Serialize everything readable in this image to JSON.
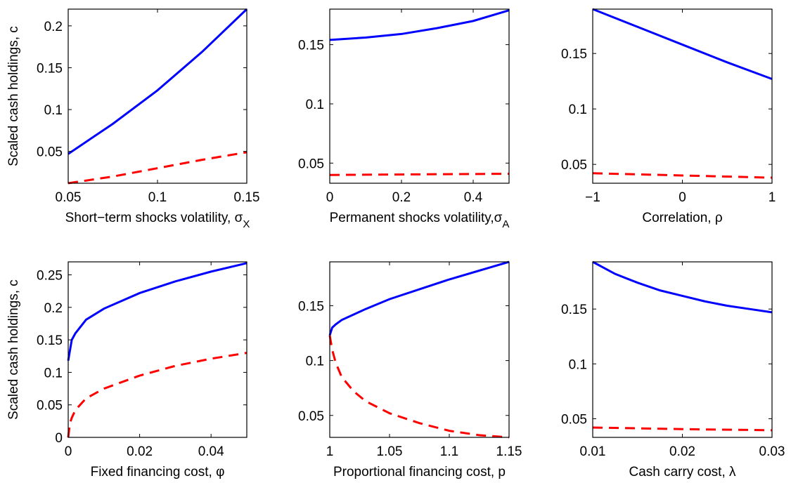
{
  "colors": {
    "solid": "#0000ff",
    "dashed": "#ff0000",
    "axis": "#000000"
  },
  "chart_data": [
    {
      "type": "line",
      "xlabel": "Short−term shocks volatility, ",
      "xlabel_symbol": "σ",
      "xlabel_sub": "X",
      "ylabel": "Scaled cash holdings, c",
      "xlim": [
        0.05,
        0.15
      ],
      "ylim": [
        0.012,
        0.22
      ],
      "xticks": [
        0.05,
        0.1,
        0.15
      ],
      "xtick_labels": [
        "0.05",
        "0.1",
        "0.15"
      ],
      "yticks": [
        0.05,
        0.1,
        0.15,
        0.2
      ],
      "ytick_labels": [
        "0.05",
        "0.1",
        "0.15",
        "0.2"
      ],
      "series": [
        {
          "style": "solid",
          "x": [
            0.05,
            0.075,
            0.1,
            0.125,
            0.15
          ],
          "y": [
            0.047,
            0.083,
            0.123,
            0.169,
            0.22
          ]
        },
        {
          "style": "dashed",
          "x": [
            0.05,
            0.075,
            0.1,
            0.125,
            0.15
          ],
          "y": [
            0.012,
            0.02,
            0.03,
            0.04,
            0.049
          ]
        }
      ]
    },
    {
      "type": "line",
      "xlabel": "Permanent shocks volatility,",
      "xlabel_symbol": "σ",
      "xlabel_sub": "A",
      "ylabel": "",
      "xlim": [
        0,
        0.5
      ],
      "ylim": [
        0.033,
        0.18
      ],
      "xticks": [
        0,
        0.2,
        0.4
      ],
      "xtick_labels": [
        "0",
        "0.2",
        "0.4"
      ],
      "yticks": [
        0.05,
        0.1,
        0.15
      ],
      "ytick_labels": [
        "0.05",
        "0.1",
        "0.15"
      ],
      "series": [
        {
          "style": "solid",
          "x": [
            0,
            0.1,
            0.2,
            0.3,
            0.4,
            0.5
          ],
          "y": [
            0.154,
            0.156,
            0.159,
            0.164,
            0.17,
            0.179
          ]
        },
        {
          "style": "dashed",
          "x": [
            0,
            0.25,
            0.5
          ],
          "y": [
            0.04,
            0.0405,
            0.041
          ]
        }
      ]
    },
    {
      "type": "line",
      "xlabel": "Correlation, ",
      "xlabel_symbol": "ρ",
      "xlabel_sub": "",
      "ylabel": "",
      "xlim": [
        -1,
        1
      ],
      "ylim": [
        0.033,
        0.19
      ],
      "xticks": [
        -1,
        0,
        1
      ],
      "xtick_labels": [
        "−1",
        "0",
        "1"
      ],
      "yticks": [
        0.05,
        0.1,
        0.15
      ],
      "ytick_labels": [
        "0.05",
        "0.1",
        "0.15"
      ],
      "series": [
        {
          "style": "solid",
          "x": [
            -1,
            -0.5,
            0,
            0.5,
            1
          ],
          "y": [
            0.19,
            0.174,
            0.158,
            0.142,
            0.127
          ]
        },
        {
          "style": "dashed",
          "x": [
            -1,
            0,
            1
          ],
          "y": [
            0.042,
            0.04,
            0.038
          ]
        }
      ]
    },
    {
      "type": "line",
      "xlabel": "Fixed financing cost, ",
      "xlabel_symbol": "φ",
      "xlabel_sub": "",
      "ylabel": "Scaled cash holdings, c",
      "xlim": [
        0,
        0.05
      ],
      "ylim": [
        0,
        0.27
      ],
      "xticks": [
        0,
        0.02,
        0.04
      ],
      "xtick_labels": [
        "0",
        "0.02",
        "0.04"
      ],
      "yticks": [
        0,
        0.05,
        0.1,
        0.15,
        0.2,
        0.25
      ],
      "ytick_labels": [
        "0",
        "0.05",
        "0.1",
        "0.15",
        "0.2",
        "0.25"
      ],
      "series": [
        {
          "style": "solid",
          "x": [
            0,
            0.001,
            0.002,
            0.005,
            0.01,
            0.02,
            0.03,
            0.04,
            0.05
          ],
          "y": [
            0.118,
            0.15,
            0.16,
            0.181,
            0.198,
            0.222,
            0.24,
            0.255,
            0.268
          ]
        },
        {
          "style": "dashed",
          "x": [
            0,
            0.0005,
            0.001,
            0.002,
            0.005,
            0.01,
            0.02,
            0.03,
            0.04,
            0.05
          ],
          "y": [
            0.0,
            0.022,
            0.03,
            0.042,
            0.06,
            0.075,
            0.095,
            0.11,
            0.121,
            0.13
          ]
        }
      ]
    },
    {
      "type": "line",
      "xlabel": "Proportional financing cost, p",
      "xlabel_symbol": "",
      "xlabel_sub": "",
      "ylabel": "",
      "xlim": [
        1,
        1.15
      ],
      "ylim": [
        0.03,
        0.19
      ],
      "xticks": [
        1,
        1.05,
        1.1,
        1.15
      ],
      "xtick_labels": [
        "1",
        "1.05",
        "1.1",
        "1.15"
      ],
      "yticks": [
        0.05,
        0.1,
        0.15
      ],
      "ytick_labels": [
        "0.05",
        "0.1",
        "0.15"
      ],
      "series": [
        {
          "style": "solid",
          "x": [
            1,
            1.002,
            1.005,
            1.01,
            1.02,
            1.03,
            1.05,
            1.075,
            1.1,
            1.125,
            1.15
          ],
          "y": [
            0.123,
            0.13,
            0.133,
            0.137,
            0.142,
            0.147,
            0.156,
            0.165,
            0.174,
            0.182,
            0.19
          ]
        },
        {
          "style": "dashed",
          "x": [
            1,
            1.002,
            1.005,
            1.01,
            1.02,
            1.03,
            1.05,
            1.075,
            1.1,
            1.125,
            1.15
          ],
          "y": [
            0.123,
            0.11,
            0.098,
            0.085,
            0.072,
            0.063,
            0.052,
            0.043,
            0.036,
            0.032,
            0.03
          ]
        }
      ]
    },
    {
      "type": "line",
      "xlabel": "Cash carry cost, ",
      "xlabel_symbol": "λ",
      "xlabel_sub": "",
      "ylabel": "",
      "xlim": [
        0.01,
        0.03
      ],
      "ylim": [
        0.033,
        0.193
      ],
      "xticks": [
        0.01,
        0.02,
        0.03
      ],
      "xtick_labels": [
        "0.01",
        "0.02",
        "0.03"
      ],
      "yticks": [
        0.05,
        0.1,
        0.15
      ],
      "ytick_labels": [
        "0.05",
        "0.1",
        "0.15"
      ],
      "series": [
        {
          "style": "solid",
          "x": [
            0.01,
            0.0125,
            0.015,
            0.0175,
            0.02,
            0.0225,
            0.025,
            0.0275,
            0.03
          ],
          "y": [
            0.193,
            0.182,
            0.174,
            0.167,
            0.162,
            0.157,
            0.153,
            0.15,
            0.147
          ]
        },
        {
          "style": "dashed",
          "x": [
            0.01,
            0.02,
            0.03
          ],
          "y": [
            0.042,
            0.0405,
            0.0395
          ]
        }
      ]
    }
  ]
}
